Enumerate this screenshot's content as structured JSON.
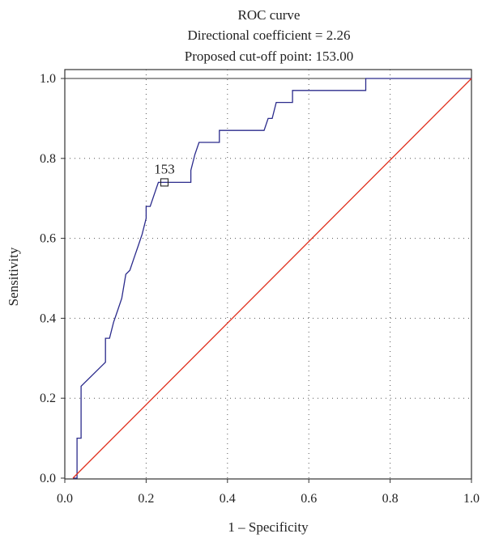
{
  "chart_data": {
    "type": "line",
    "title": "ROC curve",
    "subtitle_lines": [
      "Directional coefficient = 2.26",
      "Proposed cut-off point: 153.00"
    ],
    "xlabel": "1 – Specificity",
    "ylabel": "Sensitivity",
    "xlim": [
      0.0,
      1.0
    ],
    "ylim": [
      0.0,
      1.0
    ],
    "x_ticks": [
      "0.0",
      "0.2",
      "0.4",
      "0.6",
      "0.8",
      "1.0"
    ],
    "y_ticks": [
      "0.0",
      "0.2",
      "0.4",
      "0.6",
      "0.8",
      "1.0"
    ],
    "grid": true,
    "series": [
      {
        "color": "#2b2b8c",
        "x": [
          0.02,
          0.03,
          0.03,
          0.04,
          0.04,
          0.1,
          0.1,
          0.11,
          0.12,
          0.13,
          0.13,
          0.14,
          0.15,
          0.16,
          0.16,
          0.17,
          0.17,
          0.18,
          0.19,
          0.2,
          0.2,
          0.21,
          0.22,
          0.22,
          0.23,
          0.24,
          0.25,
          0.31,
          0.31,
          0.32,
          0.33,
          0.38,
          0.38,
          0.43,
          0.49,
          0.5,
          0.51,
          0.52,
          0.55,
          0.56,
          0.56,
          0.59,
          0.65,
          0.74,
          0.74,
          0.75,
          1.0
        ],
        "y": [
          0.0,
          0.0,
          0.1,
          0.1,
          0.23,
          0.29,
          0.35,
          0.35,
          0.39,
          0.42,
          0.42,
          0.45,
          0.51,
          0.52,
          0.52,
          0.55,
          0.55,
          0.58,
          0.61,
          0.65,
          0.68,
          0.68,
          0.71,
          0.71,
          0.74,
          0.74,
          0.74,
          0.74,
          0.77,
          0.81,
          0.84,
          0.84,
          0.87,
          0.87,
          0.87,
          0.9,
          0.9,
          0.94,
          0.94,
          0.94,
          0.97,
          0.97,
          0.97,
          0.97,
          1.0,
          1.0,
          1.0
        ]
      },
      {
        "color": "#e0301e",
        "x": [
          0.02,
          1.0
        ],
        "y": [
          0.0,
          1.0
        ]
      }
    ],
    "annotations": [
      {
        "text": "153",
        "x": 0.245,
        "y": 0.74,
        "marker": "square"
      }
    ]
  }
}
